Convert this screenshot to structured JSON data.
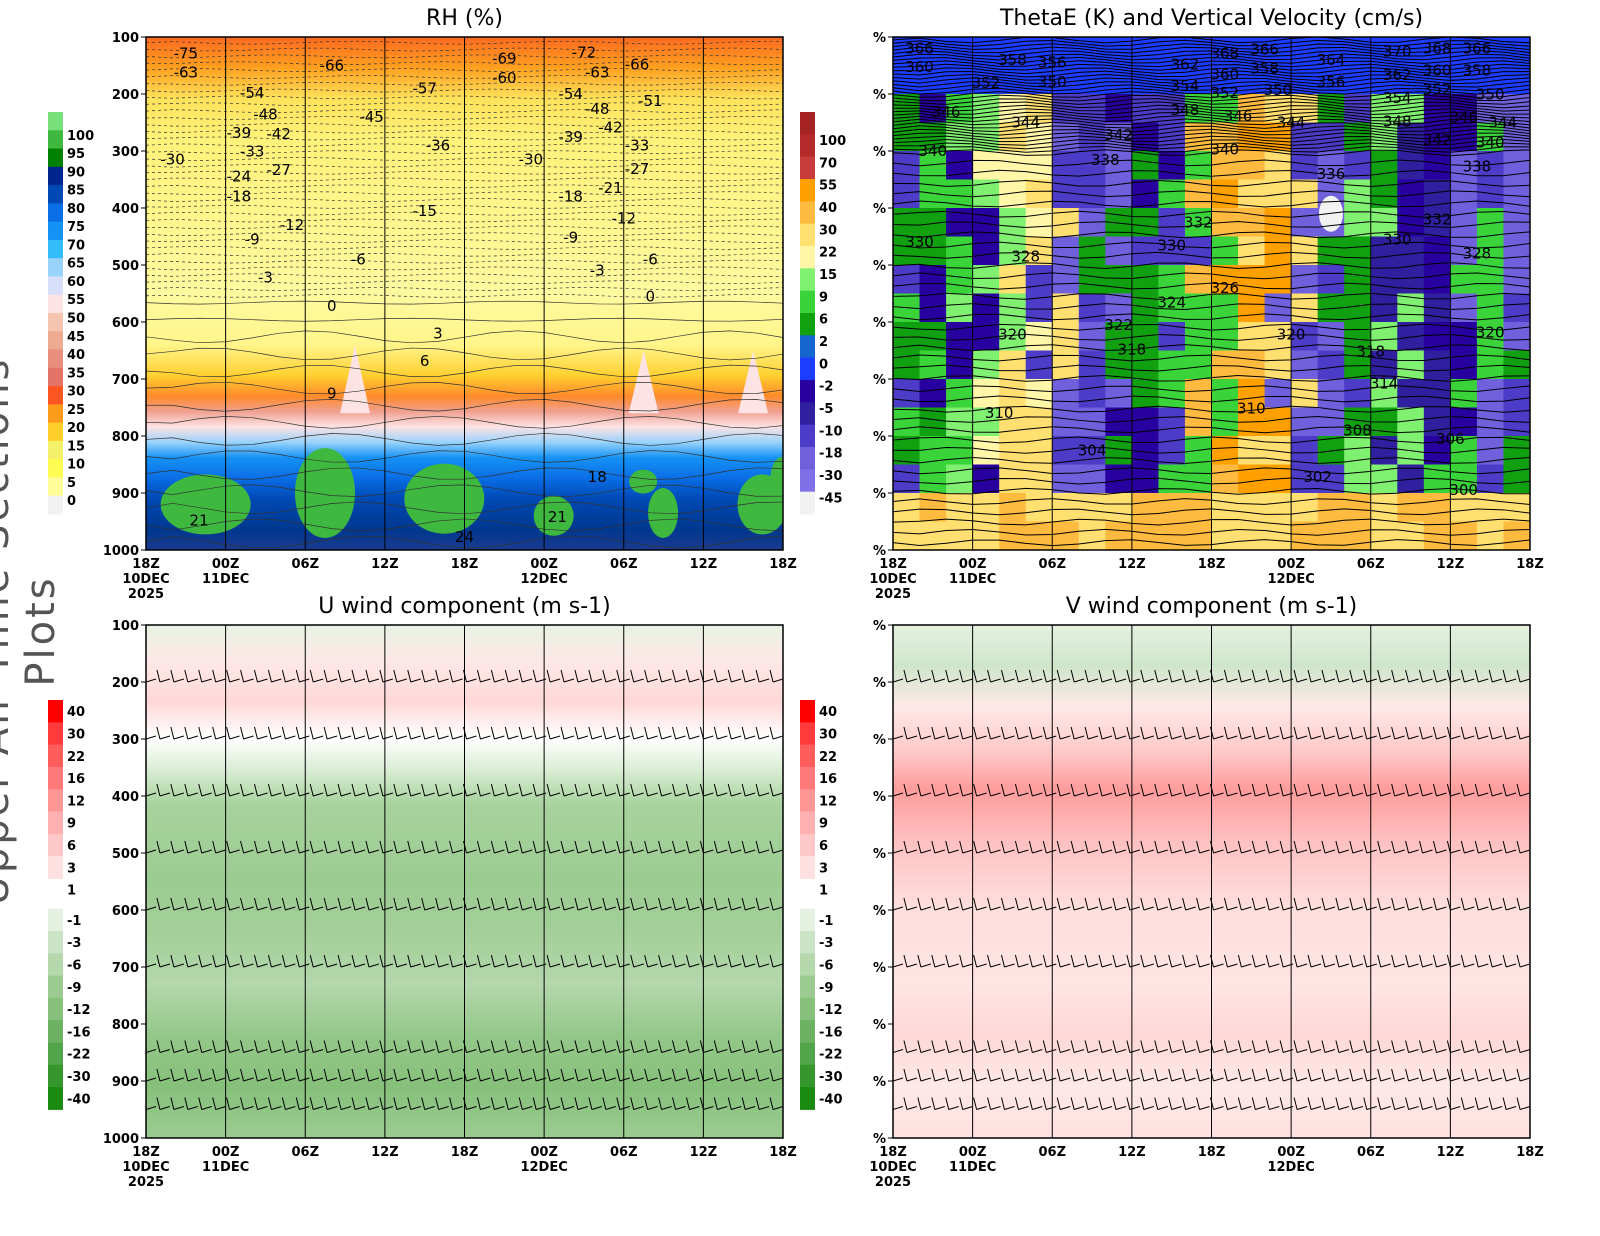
{
  "side_title": "Upper-Air Time Sections Plots",
  "chart_data": [
    {
      "type": "heatmap",
      "title": "RH (%)",
      "x_ticks": [
        "18Z",
        "00Z",
        "06Z",
        "12Z",
        "18Z",
        "00Z",
        "06Z",
        "12Z",
        "18Z"
      ],
      "x_dates": {
        "0": "10DEC",
        "1": "11DEC",
        "5": "12DEC"
      },
      "x_year": "2025",
      "x_range_hours": [
        0,
        48
      ],
      "y_ticks": [
        "100",
        "200",
        "300",
        "400",
        "500",
        "600",
        "700",
        "800",
        "900",
        "1000"
      ],
      "ylim_hpa": [
        100,
        1000
      ],
      "colorbar": {
        "labels": [
          "100",
          "95",
          "90",
          "85",
          "80",
          "75",
          "70",
          "65",
          "60",
          "55",
          "50",
          "45",
          "40",
          "35",
          "30",
          "25",
          "20",
          "15",
          "10",
          "5",
          "0"
        ],
        "colors": [
          "#77e07a",
          "#3fb83f",
          "#008000",
          "#00258f",
          "#0049b5",
          "#0a6ee6",
          "#1592f5",
          "#33bdfa",
          "#99d3fb",
          "#d8dffa",
          "#fde3e4",
          "#f5c4b0",
          "#eeaa90",
          "#e88e7c",
          "#e47468",
          "#fd5522",
          "#fd9b1b",
          "#fecf2a",
          "#f5f06a",
          "#fefb52",
          "#fefd9a",
          "#f2f2f2"
        ]
      },
      "contour_labels": [
        {
          "t": 3,
          "p": 118,
          "v": "-75"
        },
        {
          "t": 3,
          "p": 162,
          "v": "-63"
        },
        {
          "t": 14,
          "p": 150,
          "v": "-66"
        },
        {
          "t": 8,
          "p": 198,
          "v": "-54"
        },
        {
          "t": 9,
          "p": 225,
          "v": "-48"
        },
        {
          "t": 10,
          "p": 249,
          "v": "-42"
        },
        {
          "t": 17,
          "p": 240,
          "v": "-45"
        },
        {
          "t": 7,
          "p": 268,
          "v": "-39"
        },
        {
          "t": 8,
          "p": 290,
          "v": "-33"
        },
        {
          "t": 2,
          "p": 315,
          "v": "-30"
        },
        {
          "t": 10,
          "p": 333,
          "v": "-27"
        },
        {
          "t": 7,
          "p": 345,
          "v": "-24"
        },
        {
          "t": 7,
          "p": 380,
          "v": "-18"
        },
        {
          "t": 11,
          "p": 430,
          "v": "-12"
        },
        {
          "t": 8,
          "p": 455,
          "v": "-9"
        },
        {
          "t": 16,
          "p": 490,
          "v": "-6"
        },
        {
          "t": 9,
          "p": 522,
          "v": "-3"
        },
        {
          "t": 14,
          "p": 572,
          "v": "0"
        },
        {
          "t": 22,
          "p": 620,
          "v": "3"
        },
        {
          "t": 21,
          "p": 668,
          "v": "6"
        },
        {
          "t": 14,
          "p": 725,
          "v": "9"
        },
        {
          "t": 21,
          "p": 190,
          "v": "-57"
        },
        {
          "t": 27,
          "p": 138,
          "v": "-69"
        },
        {
          "t": 27,
          "p": 172,
          "v": "-60"
        },
        {
          "t": 33,
          "p": 127,
          "v": "-72"
        },
        {
          "t": 34,
          "p": 162,
          "v": "-63"
        },
        {
          "t": 37,
          "p": 148,
          "v": "-66"
        },
        {
          "t": 32,
          "p": 200,
          "v": "-54"
        },
        {
          "t": 38,
          "p": 212,
          "v": "-51"
        },
        {
          "t": 34,
          "p": 226,
          "v": "-48"
        },
        {
          "t": 35,
          "p": 248,
          "v": "-42"
        },
        {
          "t": 22,
          "p": 290,
          "v": "-36"
        },
        {
          "t": 29,
          "p": 315,
          "v": "-30"
        },
        {
          "t": 32,
          "p": 275,
          "v": "-39"
        },
        {
          "t": 37,
          "p": 290,
          "v": "-33"
        },
        {
          "t": 37,
          "p": 332,
          "v": "-27"
        },
        {
          "t": 35,
          "p": 365,
          "v": "-21"
        },
        {
          "t": 32,
          "p": 380,
          "v": "-18"
        },
        {
          "t": 21,
          "p": 405,
          "v": "-15"
        },
        {
          "t": 36,
          "p": 418,
          "v": "-12"
        },
        {
          "t": 32,
          "p": 452,
          "v": "-9"
        },
        {
          "t": 34,
          "p": 510,
          "v": "-3"
        },
        {
          "t": 38,
          "p": 490,
          "v": "-6"
        },
        {
          "t": 38,
          "p": 555,
          "v": "0"
        },
        {
          "t": 34,
          "p": 872,
          "v": "18"
        },
        {
          "t": 4,
          "p": 948,
          "v": "21"
        },
        {
          "t": 31,
          "p": 942,
          "v": "21"
        },
        {
          "t": 24,
          "p": 988,
          "v": "24"
        }
      ]
    },
    {
      "type": "heatmap",
      "title": "ThetaE (K) and Vertical Velocity (cm/s)",
      "x_ticks": [
        "18Z",
        "00Z",
        "06Z",
        "12Z",
        "18Z",
        "00Z",
        "06Z",
        "12Z",
        "18Z"
      ],
      "x_dates": {
        "0": "10DEC",
        "1": "11DEC",
        "5": "12DEC"
      },
      "x_year": "2025",
      "y_tick_label": "%",
      "colorbar": {
        "labels": [
          "100",
          "70",
          "55",
          "40",
          "30",
          "22",
          "15",
          "9",
          "6",
          "2",
          "0",
          "-2",
          "-5",
          "-10",
          "-18",
          "-30",
          "-45"
        ],
        "colors": [
          "#a52222",
          "#b52a2a",
          "#c93c3c",
          "#ff9f00",
          "#ffbb40",
          "#ffe070",
          "#fff6a8",
          "#80f070",
          "#3ad43a",
          "#10a010",
          "#1666d0",
          "#1c3cff",
          "#2800a0",
          "#3020a0",
          "#4c3cc8",
          "#7060dc",
          "#8070e8",
          "#f2f2f2"
        ]
      },
      "contour_labels": [
        {
          "t": 2,
          "p": 110,
          "v": "366"
        },
        {
          "t": 2,
          "p": 132,
          "v": "360"
        },
        {
          "t": 9,
          "p": 140,
          "v": "358"
        },
        {
          "t": 12,
          "p": 145,
          "v": "356"
        },
        {
          "t": 7,
          "p": 160,
          "v": "352"
        },
        {
          "t": 12,
          "p": 168,
          "v": "350"
        },
        {
          "t": 4,
          "p": 232,
          "v": "346"
        },
        {
          "t": 10,
          "p": 250,
          "v": "344"
        },
        {
          "t": 3,
          "p": 300,
          "v": "340"
        },
        {
          "t": 17,
          "p": 272,
          "v": "342"
        },
        {
          "t": 16,
          "p": 316,
          "v": "338"
        },
        {
          "t": 22,
          "p": 148,
          "v": "362"
        },
        {
          "t": 22,
          "p": 165,
          "v": "354"
        },
        {
          "t": 25,
          "p": 118,
          "v": "368"
        },
        {
          "t": 28,
          "p": 122,
          "v": "366"
        },
        {
          "t": 25,
          "p": 145,
          "v": "360"
        },
        {
          "t": 28,
          "p": 145,
          "v": "358"
        },
        {
          "t": 25,
          "p": 167,
          "v": "352"
        },
        {
          "t": 29,
          "p": 172,
          "v": "350"
        },
        {
          "t": 22,
          "p": 186,
          "v": "348"
        },
        {
          "t": 26,
          "p": 228,
          "v": "346"
        },
        {
          "t": 30,
          "p": 250,
          "v": "344"
        },
        {
          "t": 25,
          "p": 297,
          "v": "340"
        },
        {
          "t": 33,
          "p": 140,
          "v": "364"
        },
        {
          "t": 33,
          "p": 168,
          "v": "356"
        },
        {
          "t": 38,
          "p": 115,
          "v": "370"
        },
        {
          "t": 41,
          "p": 120,
          "v": "368"
        },
        {
          "t": 44,
          "p": 120,
          "v": "366"
        },
        {
          "t": 38,
          "p": 135,
          "v": "362"
        },
        {
          "t": 41,
          "p": 138,
          "v": "360"
        },
        {
          "t": 44,
          "p": 138,
          "v": "358"
        },
        {
          "t": 38,
          "p": 175,
          "v": "354"
        },
        {
          "t": 41,
          "p": 182,
          "v": "352"
        },
        {
          "t": 45,
          "p": 190,
          "v": "350"
        },
        {
          "t": 38,
          "p": 196,
          "v": "348"
        },
        {
          "t": 43,
          "p": 220,
          "v": "346"
        },
        {
          "t": 47,
          "p": 250,
          "v": "344"
        },
        {
          "t": 41,
          "p": 260,
          "v": "342"
        },
        {
          "t": 45,
          "p": 285,
          "v": "340"
        },
        {
          "t": 44,
          "p": 306,
          "v": "338"
        },
        {
          "t": 33,
          "p": 340,
          "v": "336"
        },
        {
          "t": 23,
          "p": 425,
          "v": "332"
        },
        {
          "t": 41,
          "p": 420,
          "v": "332"
        },
        {
          "t": 2,
          "p": 460,
          "v": "330"
        },
        {
          "t": 21,
          "p": 455,
          "v": "330"
        },
        {
          "t": 38,
          "p": 455,
          "v": "330"
        },
        {
          "t": 10,
          "p": 485,
          "v": "328"
        },
        {
          "t": 44,
          "p": 480,
          "v": "328"
        },
        {
          "t": 25,
          "p": 540,
          "v": "326"
        },
        {
          "t": 21,
          "p": 566,
          "v": "324"
        },
        {
          "t": 17,
          "p": 605,
          "v": "322"
        },
        {
          "t": 9,
          "p": 622,
          "v": "320"
        },
        {
          "t": 30,
          "p": 622,
          "v": "320"
        },
        {
          "t": 45,
          "p": 618,
          "v": "320"
        },
        {
          "t": 18,
          "p": 648,
          "v": "318"
        },
        {
          "t": 36,
          "p": 652,
          "v": "318"
        },
        {
          "t": 37,
          "p": 708,
          "v": "314"
        },
        {
          "t": 8,
          "p": 760,
          "v": "310"
        },
        {
          "t": 27,
          "p": 752,
          "v": "310"
        },
        {
          "t": 35,
          "p": 790,
          "v": "308"
        },
        {
          "t": 42,
          "p": 805,
          "v": "306"
        },
        {
          "t": 15,
          "p": 825,
          "v": "304"
        },
        {
          "t": 32,
          "p": 872,
          "v": "302"
        },
        {
          "t": 43,
          "p": 895,
          "v": "300"
        }
      ]
    },
    {
      "type": "heatmap",
      "title": "U wind component (m s-1)",
      "x_ticks": [
        "18Z",
        "00Z",
        "06Z",
        "12Z",
        "18Z",
        "00Z",
        "06Z",
        "12Z",
        "18Z"
      ],
      "x_dates": {
        "0": "10DEC",
        "1": "11DEC",
        "5": "12DEC"
      },
      "x_year": "2025",
      "y_ticks": [
        "100",
        "200",
        "300",
        "400",
        "500",
        "600",
        "700",
        "800",
        "900",
        "1000"
      ],
      "ylim_hpa": [
        100,
        1000
      ],
      "colorbar": {
        "labels": [
          "40",
          "30",
          "22",
          "16",
          "12",
          "9",
          "6",
          "3",
          "1",
          "-1",
          "-3",
          "-6",
          "-9",
          "-12",
          "-16",
          "-22",
          "-30",
          "-40"
        ],
        "colors": [
          "#ff0000",
          "#ff3a3a",
          "#ff5c5c",
          "#ff7a7a",
          "#ff9696",
          "#ffb0b0",
          "#ffc8c8",
          "#ffe0e0",
          "#ffffff",
          "#e4f1e1",
          "#cce4c6",
          "#b4d7ac",
          "#9ccb92",
          "#86c07a",
          "#6cb262",
          "#52a44a",
          "#36962e",
          "#1a8a10"
        ]
      },
      "barb_levels_hpa": [
        100,
        200,
        300,
        400,
        500,
        600,
        700,
        850,
        900,
        950
      ]
    },
    {
      "type": "heatmap",
      "title": "V wind component (m s-1)",
      "x_ticks": [
        "18Z",
        "00Z",
        "06Z",
        "12Z",
        "18Z",
        "00Z",
        "06Z",
        "12Z",
        "18Z"
      ],
      "x_dates": {
        "0": "10DEC",
        "1": "11DEC",
        "5": "12DEC"
      },
      "x_year": "2025",
      "y_tick_label": "%",
      "colorbar": {
        "labels": [
          "40",
          "30",
          "22",
          "16",
          "12",
          "9",
          "6",
          "3",
          "1",
          "-1",
          "-3",
          "-6",
          "-9",
          "-12",
          "-16",
          "-22",
          "-30",
          "-40"
        ],
        "colors": [
          "#ff0000",
          "#ff3a3a",
          "#ff5c5c",
          "#ff7a7a",
          "#ff9696",
          "#ffb0b0",
          "#ffc8c8",
          "#ffe0e0",
          "#ffffff",
          "#e4f1e1",
          "#cce4c6",
          "#b4d7ac",
          "#9ccb92",
          "#86c07a",
          "#6cb262",
          "#52a44a",
          "#36962e",
          "#1a8a10"
        ]
      },
      "barb_levels_hpa": [
        100,
        200,
        300,
        400,
        500,
        600,
        700,
        850,
        900,
        950
      ]
    }
  ]
}
